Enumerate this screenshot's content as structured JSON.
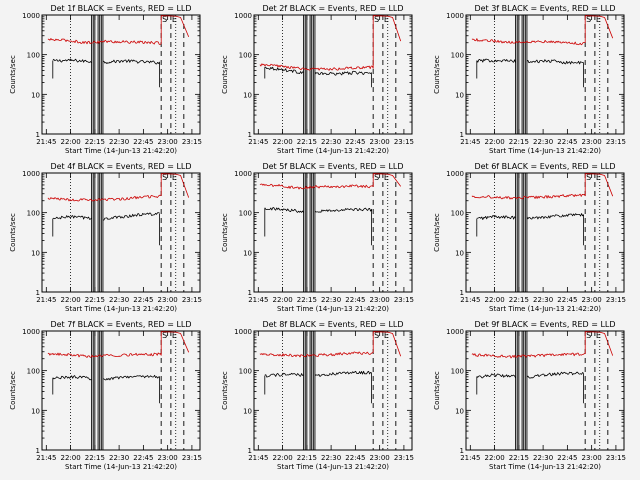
{
  "chart_data": {
    "type": "line",
    "ylabel": "Counts/sec",
    "yscale": "log",
    "ylim": [
      1,
      1000
    ],
    "ytick_labels": [
      "1",
      "10",
      "100",
      "1000"
    ],
    "xlabel": "Start Time (14-Jun-13 21:42:20)",
    "x_ticks": [
      "21:45",
      "22:00",
      "22:15",
      "22:30",
      "22:45",
      "23:00",
      "23:15"
    ],
    "xlim": [
      "21:42:20",
      "23:20"
    ],
    "markers": [
      {
        "label": "S",
        "time": "22:56",
        "style": "dashed"
      },
      {
        "label": "E",
        "time": "23:02",
        "style": "dashed"
      },
      {
        "label": "",
        "time": "23:10",
        "style": "dashed"
      }
    ],
    "dotted_lines": [
      "22:00",
      "23:05"
    ],
    "gap_lines": [
      "22:13",
      "22:14",
      "22:15",
      "22:17",
      "22:18",
      "22:19",
      "22:20"
    ],
    "series_colors": {
      "events": "#000000",
      "lld": "#cc0000"
    },
    "panels": [
      {
        "title": "Det 1f  BLACK = Events, RED = LLD",
        "series": [
          {
            "name": "BLACK = Events",
            "values": [
              70,
              72,
              68,
              65,
              70,
              66,
              63
            ]
          },
          {
            "name": "RED = LLD",
            "values": [
              240,
              230,
              200,
              215,
              210,
              205,
              195,
              960,
              280
            ]
          }
        ]
      },
      {
        "title": "Det 2f  BLACK = Events, RED = LLD",
        "series": [
          {
            "name": "BLACK = Events",
            "values": [
              48,
              42,
              36,
              33,
              33,
              35,
              34
            ]
          },
          {
            "name": "RED = LLD",
            "values": [
              55,
              52,
              45,
              43,
              44,
              46,
              48,
              960,
              220
            ]
          }
        ]
      },
      {
        "title": "Det 3f  BLACK = Events, RED = LLD",
        "series": [
          {
            "name": "BLACK = Events",
            "values": [
              70,
              72,
              69,
              66,
              70,
              64,
              62
            ]
          },
          {
            "name": "RED = LLD",
            "values": [
              240,
              225,
              205,
              215,
              215,
              200,
              190,
              960,
              260
            ]
          }
        ]
      },
      {
        "title": "Det 4f  BLACK = Events, RED = LLD",
        "series": [
          {
            "name": "BLACK = Events",
            "values": [
              70,
              80,
              73,
              70,
              80,
              90,
              95
            ]
          },
          {
            "name": "RED = LLD",
            "values": [
              230,
              215,
              210,
              215,
              220,
              250,
              260,
              960,
              240
            ]
          }
        ]
      },
      {
        "title": "Det 5f  BLACK = Events, RED = LLD",
        "series": [
          {
            "name": "BLACK = Events",
            "values": [
              130,
              120,
              110,
              110,
              115,
              120,
              120
            ]
          },
          {
            "name": "RED = LLD",
            "values": [
              500,
              480,
              420,
              450,
              460,
              470,
              450,
              960,
              460
            ]
          }
        ]
      },
      {
        "title": "Det 6f  BLACK = Events, RED = LLD",
        "series": [
          {
            "name": "BLACK = Events",
            "values": [
              70,
              80,
              75,
              72,
              80,
              85,
              88
            ]
          },
          {
            "name": "RED = LLD",
            "values": [
              260,
              250,
              235,
              240,
              250,
              270,
              275,
              960,
              260
            ]
          }
        ]
      },
      {
        "title": "Det 7f  BLACK = Events, RED = LLD",
        "series": [
          {
            "name": "BLACK = Events",
            "values": [
              65,
              70,
              65,
              62,
              70,
              72,
              70
            ]
          },
          {
            "name": "RED = LLD",
            "values": [
              260,
              255,
              230,
              240,
              250,
              255,
              260,
              960,
              290
            ]
          }
        ]
      },
      {
        "title": "Det 8f  BLACK = Events, RED = LLD",
        "series": [
          {
            "name": "BLACK = Events",
            "values": [
              75,
              80,
              78,
              75,
              85,
              90,
              88
            ]
          },
          {
            "name": "RED = LLD",
            "values": [
              260,
              250,
              240,
              245,
              260,
              280,
              270,
              960,
              230
            ]
          }
        ]
      },
      {
        "title": "Det 9f  BLACK = Events, RED = LLD",
        "series": [
          {
            "name": "BLACK = Events",
            "values": [
              70,
              78,
              72,
              70,
              80,
              85,
              85
            ]
          },
          {
            "name": "RED = LLD",
            "values": [
              250,
              240,
              225,
              235,
              245,
              255,
              260,
              960,
              240
            ]
          }
        ]
      }
    ]
  }
}
